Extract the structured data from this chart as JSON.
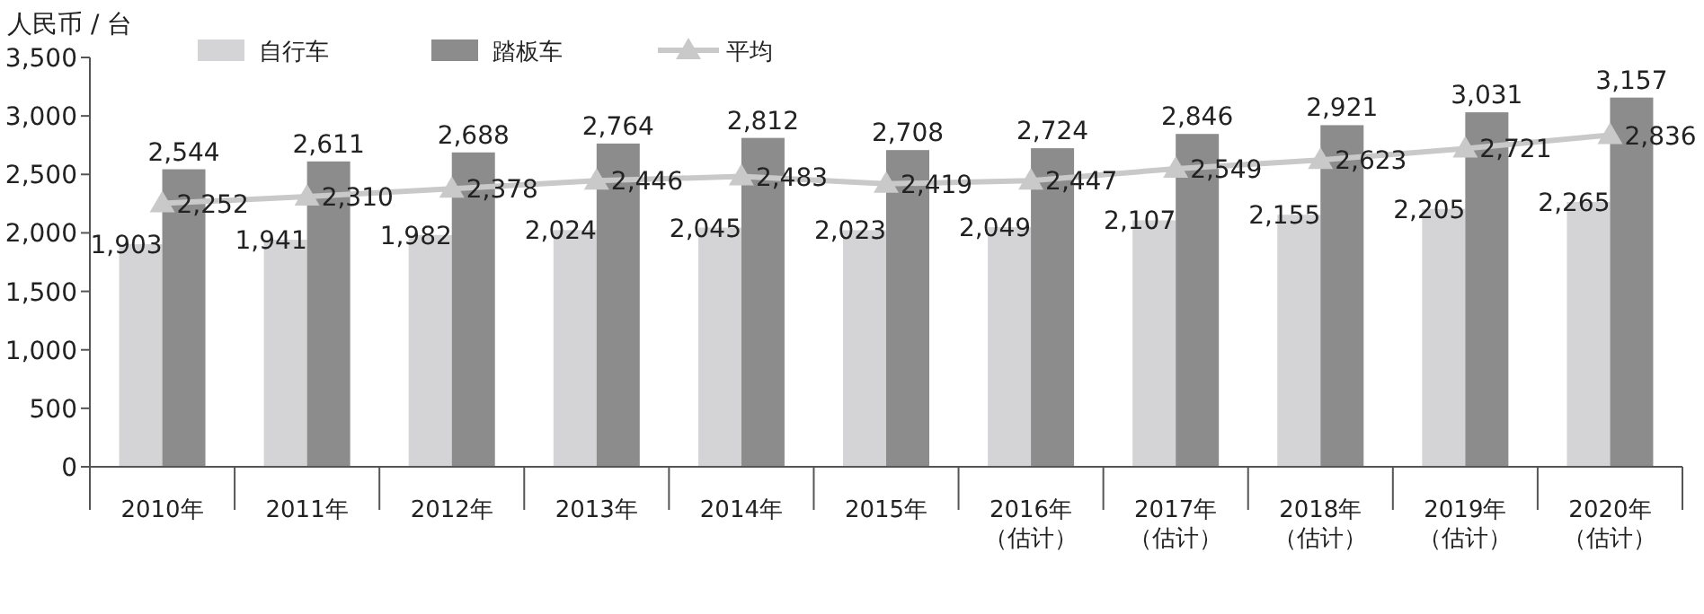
{
  "chart_data": {
    "type": "bar",
    "ylabel": "人民币 / 台",
    "categories": [
      "2010年",
      "2011年",
      "2012年",
      "2013年",
      "2014年",
      "2015年",
      "2016年（估计）",
      "2017年（估计）",
      "2018年（估计）",
      "2019年（估计）",
      "2020年（估计）"
    ],
    "series": [
      {
        "name": "自行车",
        "color": "#d4d4d6",
        "values": [
          1903,
          1941,
          1982,
          2024,
          2045,
          2023,
          2049,
          2107,
          2155,
          2205,
          2265
        ],
        "value_labels": [
          "1,903",
          "1,941",
          "1,982",
          "2,024",
          "2,045",
          "2,023",
          "2,049",
          "2,107",
          "2,155",
          "2,205",
          "2,265"
        ]
      },
      {
        "name": "踏板车",
        "color": "#8c8c8c",
        "values": [
          2544,
          2611,
          2688,
          2764,
          2812,
          2708,
          2724,
          2846,
          2921,
          3031,
          3157
        ],
        "value_labels": [
          "2,544",
          "2,611",
          "2,688",
          "2,764",
          "2,812",
          "2,708",
          "2,724",
          "2,846",
          "2,921",
          "3,031",
          "3,157"
        ]
      },
      {
        "name": "平均",
        "type": "line",
        "color": "#c9c9c9",
        "marker": "triangle",
        "values": [
          2252,
          2310,
          2378,
          2446,
          2483,
          2419,
          2447,
          2549,
          2623,
          2721,
          2836
        ],
        "value_labels": [
          "2,252",
          "2,310",
          "2,378",
          "2,446",
          "2,483",
          "2,419",
          "2,447",
          "2,549",
          "2,623",
          "2,721",
          "2,836"
        ]
      }
    ],
    "ylim": [
      0,
      3500
    ],
    "yticks": [
      0,
      500,
      {
        "value": 1000,
        "label": "1,000"
      },
      {
        "value": 1500,
        "label": "1,500"
      },
      {
        "value": 2000,
        "label": "2,000"
      },
      {
        "value": 2500,
        "label": "2,500"
      },
      {
        "value": 3000,
        "label": "3,000"
      },
      {
        "value": 3500,
        "label": "3,500"
      }
    ],
    "grid": false,
    "legend": "top left"
  }
}
